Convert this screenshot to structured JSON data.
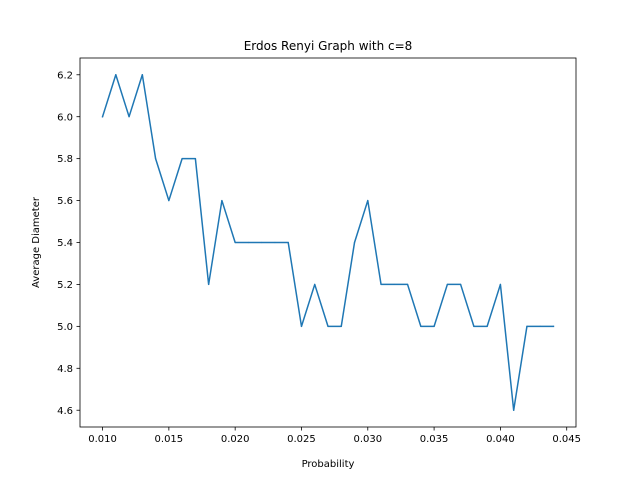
{
  "chart_data": {
    "type": "line",
    "title": "Erdos Renyi Graph with c=8",
    "xlabel": "Probability",
    "ylabel": "Average Diameter",
    "xlim": [
      0.0083,
      0.0457
    ],
    "ylim": [
      4.52,
      6.28
    ],
    "xticks": [
      0.01,
      0.015,
      0.02,
      0.025,
      0.03,
      0.035,
      0.04,
      0.045
    ],
    "xtick_labels": [
      "0.010",
      "0.015",
      "0.020",
      "0.025",
      "0.030",
      "0.035",
      "0.040",
      "0.045"
    ],
    "yticks": [
      4.6,
      4.8,
      5.0,
      5.2,
      5.4,
      5.6,
      5.8,
      6.0,
      6.2
    ],
    "ytick_labels": [
      "4.6",
      "4.8",
      "5.0",
      "5.2",
      "5.4",
      "5.6",
      "5.8",
      "6.0",
      "6.2"
    ],
    "grid": false,
    "color": "#1f77b4",
    "series": [
      {
        "x": [
          0.01,
          0.011,
          0.012,
          0.013,
          0.014,
          0.015,
          0.016,
          0.017,
          0.018,
          0.019,
          0.02,
          0.021,
          0.022,
          0.023,
          0.024,
          0.025,
          0.026,
          0.027,
          0.028,
          0.029,
          0.03,
          0.031,
          0.032,
          0.033,
          0.034,
          0.035,
          0.036,
          0.037,
          0.038,
          0.039,
          0.04,
          0.041,
          0.042,
          0.043,
          0.044
        ],
        "values": [
          6.0,
          6.2,
          6.0,
          6.2,
          5.8,
          5.6,
          5.8,
          5.8,
          5.2,
          5.6,
          5.4,
          5.4,
          5.4,
          5.4,
          5.4,
          5.0,
          5.2,
          5.0,
          5.0,
          5.4,
          5.6,
          5.2,
          5.2,
          5.2,
          5.0,
          5.0,
          5.2,
          5.2,
          5.0,
          5.0,
          5.2,
          4.6,
          5.0,
          5.0,
          5.0
        ]
      }
    ]
  }
}
